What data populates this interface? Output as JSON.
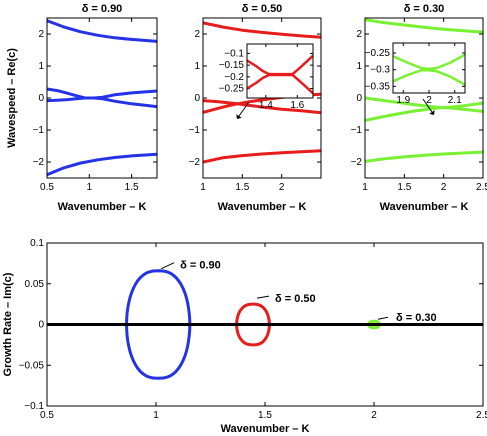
{
  "chart_data": [
    {
      "type": "line",
      "panel": "top-left",
      "title": "δ = 0.90",
      "xlabel": "Wavenumber – K",
      "ylabel": "Wavespeed – Re(c)",
      "xlim": [
        0.5,
        1.8
      ],
      "ylim": [
        -2.5,
        2.5
      ],
      "xticks": [
        "0.5",
        "1",
        "1.5"
      ],
      "yticks": [
        "−2",
        "−1",
        "0",
        "1",
        "2"
      ],
      "color": "#2433e8",
      "series": [
        {
          "x": [
            0.5,
            0.7,
            0.9,
            1.1,
            1.3,
            1.5,
            1.8
          ],
          "y": [
            2.42,
            2.22,
            2.07,
            1.96,
            1.88,
            1.83,
            1.77
          ]
        },
        {
          "x": [
            0.5,
            0.62,
            0.74,
            0.86,
            0.95,
            1.05,
            1.15,
            1.3,
            1.5,
            1.8
          ],
          "y": [
            0.28,
            0.23,
            0.15,
            0.06,
            0.0,
            0.0,
            0.02,
            0.1,
            0.16,
            0.22
          ]
        },
        {
          "x": [
            0.5,
            0.62,
            0.74,
            0.86,
            0.95,
            1.05,
            1.15,
            1.3,
            1.5,
            1.8
          ],
          "y": [
            -0.08,
            -0.07,
            -0.05,
            -0.02,
            0.0,
            0.0,
            -0.02,
            -0.1,
            -0.18,
            -0.27
          ]
        },
        {
          "x": [
            0.5,
            0.7,
            0.9,
            1.1,
            1.3,
            1.5,
            1.8
          ],
          "y": [
            -2.4,
            -2.18,
            -2.03,
            -1.93,
            -1.86,
            -1.81,
            -1.76
          ]
        }
      ]
    },
    {
      "type": "line",
      "panel": "top-middle",
      "title": "δ = 0.50",
      "xlabel": "Wavenumber – K",
      "xlim": [
        1,
        2.5
      ],
      "ylim": [
        -2.5,
        2.5
      ],
      "xticks": [
        "1",
        "1.5",
        "2"
      ],
      "yticks": [
        "−2",
        "−1",
        "0",
        "1",
        "2"
      ],
      "color": "#e81c1c",
      "series": [
        {
          "x": [
            1,
            1.25,
            1.5,
            1.75,
            2,
            2.25,
            2.5
          ],
          "y": [
            2.35,
            2.22,
            2.12,
            2.05,
            1.99,
            1.94,
            1.9
          ]
        },
        {
          "x": [
            1,
            1.2,
            1.36,
            1.44,
            1.55,
            1.75,
            2,
            2.25,
            2.5
          ],
          "y": [
            -0.08,
            -0.12,
            -0.16,
            -0.18,
            -0.13,
            -0.06,
            0.02,
            0.08,
            0.12
          ]
        },
        {
          "x": [
            1,
            1.2,
            1.36,
            1.44,
            1.55,
            1.75,
            2,
            2.25,
            2.5
          ],
          "y": [
            -0.45,
            -0.32,
            -0.22,
            -0.18,
            -0.22,
            -0.28,
            -0.35,
            -0.4,
            -0.46
          ]
        },
        {
          "x": [
            1,
            1.25,
            1.5,
            1.75,
            2,
            2.25,
            2.5
          ],
          "y": [
            -2.0,
            -1.87,
            -1.8,
            -1.75,
            -1.71,
            -1.68,
            -1.65
          ]
        }
      ],
      "inset": {
        "xlim": [
          1.28,
          1.7
        ],
        "ylim": [
          -0.29,
          -0.06
        ],
        "xticks": [
          "1.4",
          "1.6"
        ],
        "yticks": [
          "−0.1",
          "−0.15",
          "−0.2",
          "−0.25"
        ],
        "series": [
          {
            "x": [
              1.28,
              1.34,
              1.38,
              1.42,
              1.47,
              1.53,
              1.57,
              1.61,
              1.66,
              1.7
            ],
            "y": [
              -0.13,
              -0.155,
              -0.175,
              -0.188,
              -0.188,
              -0.188,
              -0.188,
              -0.165,
              -0.135,
              -0.11
            ]
          },
          {
            "x": [
              1.28,
              1.34,
              1.38,
              1.42,
              1.47,
              1.53,
              1.57,
              1.61,
              1.66,
              1.7
            ],
            "y": [
              -0.25,
              -0.225,
              -0.205,
              -0.192,
              -0.192,
              -0.192,
              -0.192,
              -0.215,
              -0.245,
              -0.27
            ]
          }
        ]
      }
    },
    {
      "type": "line",
      "panel": "top-right",
      "title": "δ = 0.30",
      "xlabel": "Wavenumber – K",
      "xlim": [
        1,
        2.5
      ],
      "ylim": [
        -2.5,
        2.5
      ],
      "xticks": [
        "1",
        "1.5",
        "2",
        "2.5"
      ],
      "yticks": [
        "−2",
        "−1",
        "0",
        "1",
        "2"
      ],
      "color": "#7af032",
      "series": [
        {
          "x": [
            1,
            1.25,
            1.5,
            1.75,
            2,
            2.25,
            2.5
          ],
          "y": [
            2.45,
            2.35,
            2.28,
            2.21,
            2.15,
            2.1,
            2.06
          ]
        },
        {
          "x": [
            1,
            1.3,
            1.6,
            1.85,
            1.96,
            2.04,
            2.2,
            2.5
          ],
          "y": [
            -0.7,
            -0.55,
            -0.42,
            -0.33,
            -0.3,
            -0.3,
            -0.26,
            -0.16
          ]
        },
        {
          "x": [
            1,
            1.3,
            1.6,
            1.85,
            1.96,
            2.04,
            2.2,
            2.5
          ],
          "y": [
            0.0,
            -0.1,
            -0.2,
            -0.27,
            -0.3,
            -0.3,
            -0.34,
            -0.42
          ]
        },
        {
          "x": [
            1,
            1.25,
            1.5,
            1.75,
            2,
            2.25,
            2.5
          ],
          "y": [
            -1.98,
            -1.9,
            -1.84,
            -1.79,
            -1.75,
            -1.72,
            -1.69
          ]
        }
      ],
      "inset": {
        "xlim": [
          1.86,
          2.14
        ],
        "ylim": [
          -0.37,
          -0.22
        ],
        "xticks": [
          "1.9",
          "2",
          "2.1"
        ],
        "yticks": [
          "−0.25",
          "−0.3",
          "−0.35"
        ],
        "series": [
          {
            "x": [
              1.86,
              1.92,
              1.97,
              2.0,
              2.03,
              2.08,
              2.14
            ],
            "y": [
              -0.26,
              -0.28,
              -0.295,
              -0.298,
              -0.295,
              -0.28,
              -0.255
            ]
          },
          {
            "x": [
              1.86,
              1.92,
              1.97,
              2.0,
              2.03,
              2.08,
              2.14
            ],
            "y": [
              -0.335,
              -0.315,
              -0.302,
              -0.302,
              -0.305,
              -0.32,
              -0.345
            ]
          }
        ]
      }
    },
    {
      "type": "line",
      "panel": "bottom",
      "xlabel": "Wavenumber – K",
      "ylabel": "Growth Rate – Im(c)",
      "xlim": [
        0.5,
        2.5
      ],
      "ylim": [
        -0.1,
        0.1
      ],
      "xticks": [
        "0.5",
        "1",
        "1.5",
        "2",
        "2.5"
      ],
      "yticks": [
        "−0.1",
        "−0.05",
        "0",
        "0.05",
        "0.1"
      ],
      "series": [
        {
          "name": "δ = 0.90",
          "color": "#2433e8",
          "center": 1.01,
          "halfwidth": 0.145,
          "amplitude": 0.066
        },
        {
          "name": "δ = 0.50",
          "color": "#e81c1c",
          "center": 1.445,
          "halfwidth": 0.075,
          "amplitude": 0.025
        },
        {
          "name": "δ = 0.30",
          "color": "#7af032",
          "center": 2.0,
          "halfwidth": 0.025,
          "amplitude": 0.004
        }
      ],
      "zero_line": {
        "color": "#000000"
      }
    }
  ]
}
